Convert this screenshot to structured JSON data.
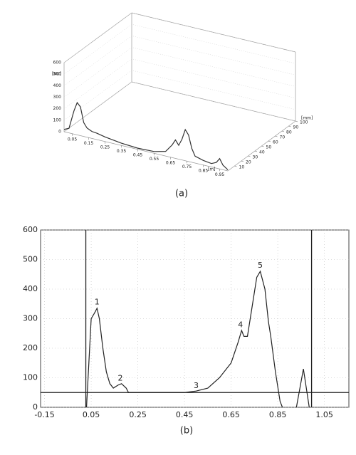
{
  "chart_data": [
    {
      "type": "line3d",
      "caption": "(a)",
      "xlabel": "[m]",
      "ylabel": "[AU]",
      "zlabel": "[mm]",
      "xlim": [
        0,
        1
      ],
      "xticks": [
        0.05,
        0.15,
        0.25,
        0.35,
        0.45,
        0.55,
        0.65,
        0.75,
        0.85,
        0.95
      ],
      "ylim": [
        0,
        600
      ],
      "yticks": [
        0,
        100,
        200,
        300,
        400,
        500,
        600
      ],
      "zlim": [
        0,
        100
      ],
      "zticks": [
        10,
        20,
        30,
        40,
        50,
        60,
        70,
        80,
        90,
        100
      ],
      "color": "#333333",
      "x": [
        0.0,
        0.03,
        0.06,
        0.08,
        0.1,
        0.12,
        0.14,
        0.17,
        0.2,
        0.25,
        0.35,
        0.45,
        0.55,
        0.62,
        0.66,
        0.68,
        0.7,
        0.72,
        0.74,
        0.76,
        0.78,
        0.8,
        0.85,
        0.9,
        0.93,
        0.95,
        0.97,
        1.0
      ],
      "values": [
        20,
        40,
        200,
        280,
        250,
        120,
        80,
        60,
        55,
        40,
        20,
        10,
        15,
        40,
        110,
        160,
        120,
        180,
        270,
        230,
        120,
        60,
        40,
        30,
        50,
        90,
        40,
        10
      ]
    },
    {
      "type": "line",
      "caption": "(b)",
      "xlim": [
        -0.167,
        1.155
      ],
      "xticks": [
        -0.15,
        0.05,
        0.25,
        0.45,
        0.65,
        0.85,
        1.05
      ],
      "ylim": [
        0,
        600
      ],
      "yticks": [
        0,
        100,
        200,
        300,
        400,
        500,
        600
      ],
      "color": "#222222",
      "vlines": [
        0.027,
        0.995
      ],
      "hline": 50,
      "x": [
        0.03,
        0.04,
        0.05,
        0.065,
        0.075,
        0.085,
        0.1,
        0.115,
        0.13,
        0.145,
        0.165,
        0.18,
        0.2,
        0.21,
        0.3,
        0.45,
        0.5,
        0.55,
        0.6,
        0.65,
        0.68,
        0.695,
        0.705,
        0.72,
        0.74,
        0.76,
        0.775,
        0.795,
        0.81,
        0.82,
        0.84,
        0.86,
        0.87,
        0.9,
        0.93,
        0.96,
        0.985
      ],
      "values": [
        0,
        150,
        300,
        320,
        335,
        300,
        200,
        120,
        80,
        65,
        75,
        80,
        65,
        50,
        50,
        50,
        55,
        65,
        100,
        150,
        220,
        260,
        240,
        240,
        340,
        440,
        460,
        400,
        290,
        240,
        120,
        20,
        0,
        null,
        0,
        130,
        0
      ],
      "annotations": [
        {
          "text": "1",
          "x": 0.075,
          "y": 355
        },
        {
          "text": "2",
          "x": 0.175,
          "y": 98
        },
        {
          "text": "3",
          "x": 0.5,
          "y": 72
        },
        {
          "text": "4",
          "x": 0.69,
          "y": 278
        },
        {
          "text": "5",
          "x": 0.775,
          "y": 480
        }
      ]
    }
  ]
}
